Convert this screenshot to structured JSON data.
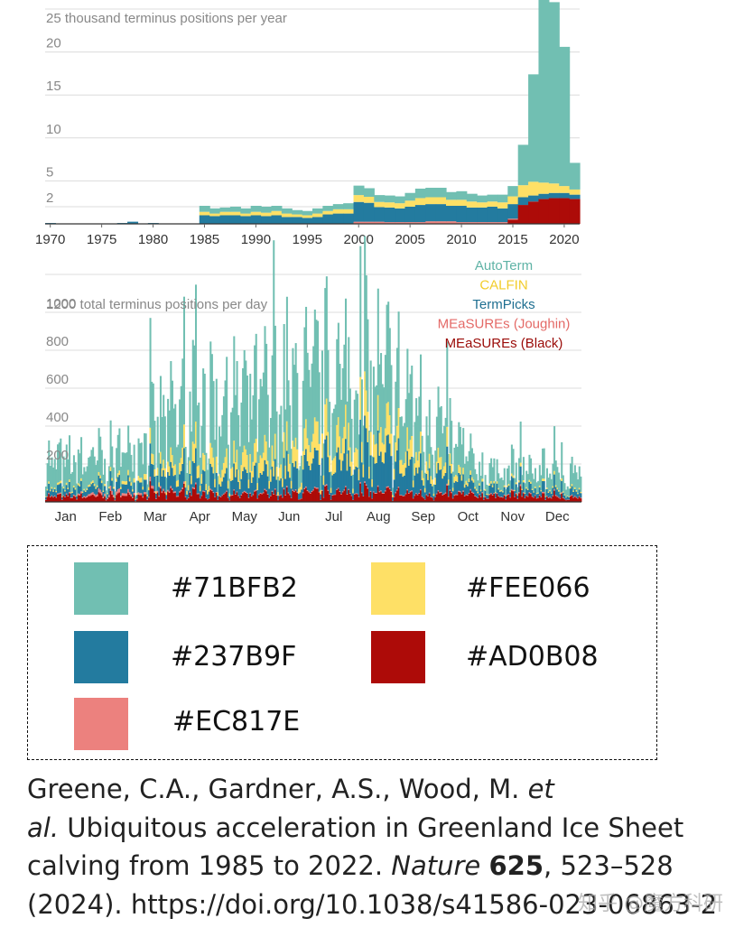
{
  "colors": {
    "autoterm": "#71BFB2",
    "calfin": "#FEE066",
    "termpicks": "#237B9F",
    "measures_joughin": "#EC817E",
    "measures_black": "#AD0B08"
  },
  "chart_data": [
    {
      "type": "area",
      "stacked": true,
      "title": "",
      "ylabel": "25 thousand terminus positions per year",
      "ylim": [
        0,
        25
      ],
      "yticks": [
        2,
        5,
        10,
        15,
        20
      ],
      "ytick_labels": [
        "2",
        "5",
        "10",
        "15",
        "20"
      ],
      "xticks": [
        1970,
        1975,
        1980,
        1985,
        1990,
        1995,
        2000,
        2005,
        2010,
        2015,
        2020
      ],
      "xtick_labels": [
        "1970",
        "1975",
        "1980",
        "1985",
        "1990",
        "1995",
        "2000",
        "2005",
        "2010",
        "2015",
        "2020"
      ],
      "units": "thousand terminus positions per year",
      "x": [
        1970,
        1971,
        1972,
        1973,
        1974,
        1975,
        1976,
        1977,
        1978,
        1979,
        1980,
        1981,
        1982,
        1983,
        1984,
        1985,
        1986,
        1987,
        1988,
        1989,
        1990,
        1991,
        1992,
        1993,
        1994,
        1995,
        1996,
        1997,
        1998,
        1999,
        2000,
        2001,
        2002,
        2003,
        2004,
        2005,
        2006,
        2007,
        2008,
        2009,
        2010,
        2011,
        2012,
        2013,
        2014,
        2015,
        2016,
        2017,
        2018,
        2019,
        2020,
        2021
      ],
      "series": [
        {
          "name": "MEaSUREs (Black)",
          "color": "#AD0B08",
          "values": [
            0,
            0,
            0,
            0,
            0,
            0,
            0,
            0,
            0,
            0,
            0,
            0,
            0,
            0,
            0,
            0,
            0,
            0,
            0,
            0,
            0,
            0,
            0,
            0,
            0,
            0,
            0,
            0,
            0,
            0,
            0,
            0,
            0,
            0,
            0,
            0,
            0,
            0,
            0,
            0,
            0,
            0,
            0,
            0,
            0,
            0.5,
            2.2,
            2.6,
            2.9,
            3.0,
            3.0,
            2.9
          ]
        },
        {
          "name": "MEaSUREs (Joughin)",
          "color": "#EC817E",
          "values": [
            0,
            0,
            0,
            0,
            0,
            0,
            0,
            0,
            0,
            0,
            0,
            0,
            0,
            0,
            0,
            0,
            0,
            0,
            0,
            0,
            0,
            0,
            0,
            0,
            0,
            0,
            0,
            0,
            0,
            0,
            0.25,
            0.25,
            0.25,
            0.2,
            0.2,
            0.2,
            0.2,
            0.3,
            0.3,
            0.3,
            0.2,
            0.2,
            0.2,
            0.2,
            0.2,
            0.1,
            0,
            0,
            0,
            0,
            0,
            0
          ]
        },
        {
          "name": "TermPicks",
          "color": "#237B9F",
          "values": [
            0.1,
            0,
            0,
            0,
            0.05,
            0,
            0,
            0.1,
            0.25,
            0,
            0.1,
            0.05,
            0.05,
            0,
            0.05,
            1.0,
            0.9,
            1.0,
            1.0,
            0.9,
            1.0,
            0.9,
            1.0,
            0.8,
            0.8,
            0.7,
            0.8,
            1.1,
            1.2,
            1.2,
            2.3,
            2.2,
            1.7,
            1.7,
            1.6,
            1.8,
            2.0,
            2.0,
            2.0,
            1.8,
            1.9,
            1.7,
            1.7,
            1.8,
            1.6,
            1.7,
            0.9,
            0.7,
            0.6,
            0.6,
            0.6,
            0.5
          ]
        },
        {
          "name": "CALFIN",
          "color": "#FEE066",
          "values": [
            0,
            0,
            0,
            0,
            0,
            0,
            0,
            0,
            0,
            0,
            0,
            0,
            0,
            0,
            0,
            0.4,
            0.3,
            0.4,
            0.4,
            0.3,
            0.4,
            0.4,
            0.5,
            0.4,
            0.3,
            0.3,
            0.4,
            0.4,
            0.5,
            0.5,
            0.8,
            0.7,
            0.6,
            0.6,
            0.6,
            0.7,
            0.8,
            0.8,
            0.8,
            0.7,
            0.7,
            0.7,
            0.6,
            0.6,
            0.7,
            0.9,
            1.4,
            1.6,
            1.3,
            1.1,
            0.8,
            0.6
          ]
        },
        {
          "name": "AutoTerm",
          "color": "#71BFB2",
          "values": [
            0,
            0,
            0,
            0,
            0,
            0,
            0,
            0,
            0,
            0,
            0,
            0,
            0,
            0,
            0,
            0.7,
            0.6,
            0.5,
            0.6,
            0.6,
            0.7,
            0.7,
            0.6,
            0.6,
            0.5,
            0.5,
            0.6,
            0.6,
            0.6,
            0.7,
            1.1,
            1.0,
            0.8,
            0.8,
            0.8,
            0.9,
            1.1,
            1.1,
            1.1,
            0.9,
            1.0,
            0.9,
            0.8,
            0.8,
            0.9,
            1.2,
            4.7,
            12.5,
            21.9,
            21.1,
            16.2,
            3.1
          ]
        }
      ]
    },
    {
      "type": "area",
      "stacked": true,
      "ylabel": "1200 total terminus positions per day",
      "ylim": [
        0,
        1300
      ],
      "yticks": [
        200,
        400,
        600,
        800,
        1000
      ],
      "ytick_labels": [
        "200",
        "400",
        "600",
        "800",
        "1000"
      ],
      "xtick_labels": [
        "Jan",
        "Feb",
        "Mar",
        "Apr",
        "May",
        "Jun",
        "Jul",
        "Aug",
        "Sep",
        "Oct",
        "Nov",
        "Dec"
      ],
      "units": "total terminus positions per day",
      "legend": [
        "AutoTerm",
        "CALFIN",
        "TermPicks",
        "MEaSUREs (Joughin)",
        "MEaSUREs (Black)"
      ],
      "legend_position": "top-right",
      "monthly_mean_per_day": [
        {
          "month": "Jan",
          "MEaSUREs (Black)": 35,
          "MEaSUREs (Joughin)": 5,
          "TermPicks": 40,
          "CALFIN": 10,
          "AutoTerm": 180
        },
        {
          "month": "Feb",
          "MEaSUREs (Black)": 40,
          "MEaSUREs (Joughin)": 20,
          "TermPicks": 55,
          "CALFIN": 15,
          "AutoTerm": 170
        },
        {
          "month": "Mar",
          "MEaSUREs (Black)": 55,
          "MEaSUREs (Joughin)": 10,
          "TermPicks": 90,
          "CALFIN": 45,
          "AutoTerm": 300
        },
        {
          "month": "Apr",
          "MEaSUREs (Black)": 55,
          "MEaSUREs (Joughin)": 5,
          "TermPicks": 110,
          "CALFIN": 90,
          "AutoTerm": 450
        },
        {
          "month": "May",
          "MEaSUREs (Black)": 45,
          "MEaSUREs (Joughin)": 5,
          "TermPicks": 110,
          "CALFIN": 100,
          "AutoTerm": 440
        },
        {
          "month": "Jun",
          "MEaSUREs (Black)": 50,
          "MEaSUREs (Joughin)": 5,
          "TermPicks": 120,
          "CALFIN": 100,
          "AutoTerm": 420
        },
        {
          "month": "Jul",
          "MEaSUREs (Black)": 65,
          "MEaSUREs (Joughin)": 5,
          "TermPicks": 200,
          "CALFIN": 150,
          "AutoTerm": 470
        },
        {
          "month": "Aug",
          "MEaSUREs (Black)": 60,
          "MEaSUREs (Joughin)": 5,
          "TermPicks": 220,
          "CALFIN": 140,
          "AutoTerm": 420
        },
        {
          "month": "Sep",
          "MEaSUREs (Black)": 50,
          "MEaSUREs (Joughin)": 5,
          "TermPicks": 150,
          "CALFIN": 90,
          "AutoTerm": 330
        },
        {
          "month": "Oct",
          "MEaSUREs (Black)": 40,
          "MEaSUREs (Joughin)": 5,
          "TermPicks": 50,
          "CALFIN": 15,
          "AutoTerm": 130
        },
        {
          "month": "Nov",
          "MEaSUREs (Black)": 45,
          "MEaSUREs (Joughin)": 5,
          "TermPicks": 50,
          "CALFIN": 10,
          "AutoTerm": 110
        },
        {
          "month": "Dec",
          "MEaSUREs (Black)": 30,
          "MEaSUREs (Joughin)": 5,
          "TermPicks": 40,
          "CALFIN": 10,
          "AutoTerm": 130
        }
      ],
      "peak_per_day": 1420
    }
  ],
  "palette": {
    "items": [
      {
        "label": "#71BFB2",
        "color": "#71BFB2"
      },
      {
        "label": "#FEE066",
        "color": "#FEE066"
      },
      {
        "label": "#237B9F",
        "color": "#237B9F"
      },
      {
        "label": "#AD0B08",
        "color": "#AD0B08"
      },
      {
        "label": "#EC817E",
        "color": "#EC817E"
      }
    ]
  },
  "citation": {
    "authors": "Greene, C.A., Gardner, A.S., Wood, M.",
    "et": "et",
    "al": "al.",
    "title": "Ubiquitous acceleration in Greenland Ice Sheet calving from 1985 to 2022.",
    "journal": "Nature",
    "volume": "625",
    "pages": ", 523–528",
    "year_doi": "(2024). https://doi.org/10.1038/s41586-023-06863-2"
  },
  "watermark": "知乎 @魔方科研"
}
